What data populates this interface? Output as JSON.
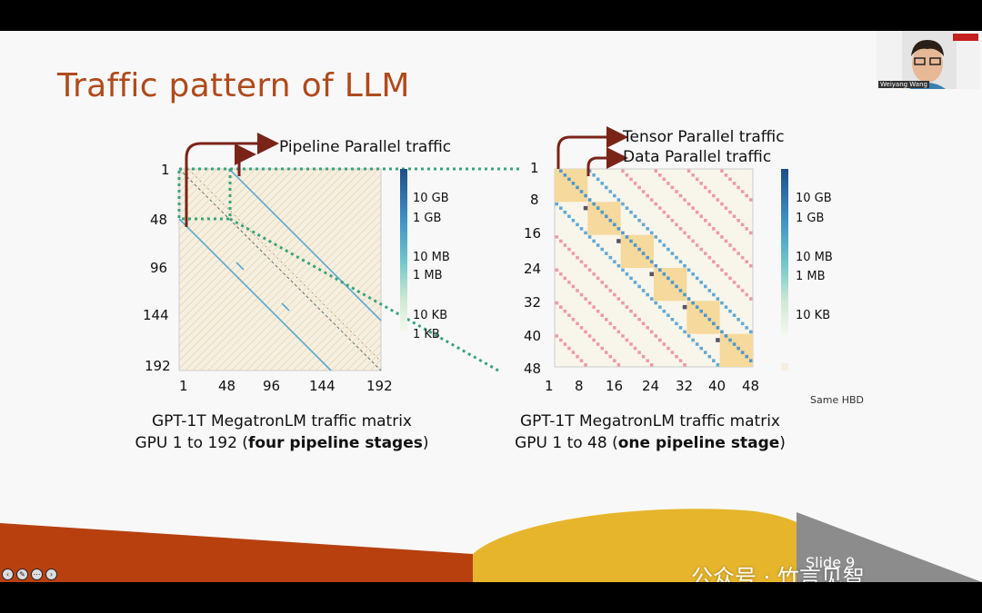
{
  "slide": {
    "title": "Traffic pattern of LLM",
    "slide_number": "Slide 9",
    "watermark": "公众号 · 竹言见智"
  },
  "presenter": {
    "name_label": "Weiyang Wang"
  },
  "colors": {
    "title": "#b04a1c",
    "pipeline_arrow": "#7a2418",
    "dotted_box": "#3aa37a",
    "orange_band": "#b8400f",
    "yellow_band": "#e6b52c",
    "grey_triangle": "#8c8c8c"
  },
  "left_chart": {
    "callout": "Pipeline Parallel traffic",
    "y_ticks": [
      "1",
      "48",
      "96",
      "144",
      "192"
    ],
    "x_ticks": [
      "1",
      "48",
      "96",
      "144",
      "192"
    ],
    "colorbar_ticks": [
      "10 GB",
      "1 GB",
      "10 MB",
      "1 MB",
      "10 KB",
      "1 KB"
    ],
    "caption_line1": "GPT-1T MegatronLM traffic matrix",
    "caption_line2_plain": "GPU 1 to 192 (",
    "caption_line2_bold": "four pipeline stages",
    "caption_line2_end": ")"
  },
  "right_chart": {
    "callout_tensor": "Tensor Parallel traffic",
    "callout_data": "Data Parallel traffic",
    "y_ticks": [
      "1",
      "8",
      "16",
      "24",
      "32",
      "40",
      "48"
    ],
    "x_ticks": [
      "1",
      "8",
      "16",
      "24",
      "32",
      "40",
      "48"
    ],
    "colorbar_ticks": [
      "10 GB",
      "1 GB",
      "10 MB",
      "1 MB",
      "10 KB"
    ],
    "legend_same_hbd": "Same HBD",
    "caption_line1": "GPT-1T MegatronLM traffic matrix",
    "caption_line2_plain": "GPU 1 to 48 (",
    "caption_line2_bold": "one pipeline stage",
    "caption_line2_end": ")"
  },
  "chart_data": [
    {
      "type": "heatmap",
      "title": "",
      "dimension": 192,
      "x_range": [
        1,
        192
      ],
      "y_range": [
        1,
        192
      ],
      "colorbar_scale": "log",
      "colorbar_labels": [
        "10 GB",
        "1 GB",
        "10 MB",
        "1 MB",
        "10 KB",
        "1 KB"
      ],
      "description_of_bands": "pipeline parallel traffic between adjacent 48-GPU stages"
    },
    {
      "type": "heatmap",
      "title": "",
      "dimension": 48,
      "x_range": [
        1,
        48
      ],
      "y_range": [
        1,
        48
      ],
      "colorbar_scale": "log",
      "colorbar_labels": [
        "10 GB",
        "1 GB",
        "10 MB",
        "1 MB",
        "10 KB"
      ],
      "tensor_parallel_block_size": 8,
      "data_parallel_offset": 8
    }
  ]
}
